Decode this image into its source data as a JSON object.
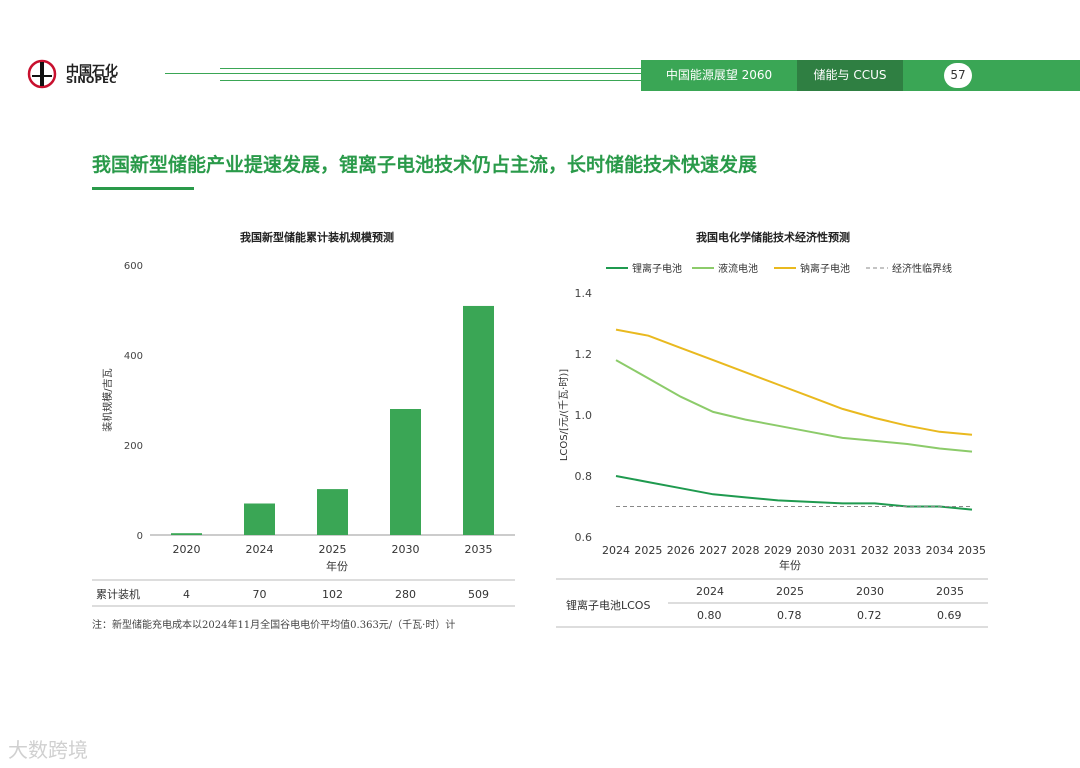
{
  "header": {
    "logo_cn": "中国石化",
    "logo_en": "SINOPEC",
    "report": "中国能源展望 2060",
    "section": "储能与 CCUS",
    "page": "57"
  },
  "title": "我国新型储能产业提速发展，锂离子电池技术仍占主流，长时储能技术快速发展",
  "left_chart": {
    "title": "我国新型储能累计装机规模预测",
    "ylabel": "装机规模/吉瓦",
    "xlabel": "年份",
    "row_label": "累计装机",
    "categories": [
      "2020",
      "2024",
      "2025",
      "2030",
      "2035"
    ],
    "values": [
      4,
      70,
      102,
      280,
      509
    ],
    "yticks": [
      "0",
      "200",
      "400",
      "600"
    ],
    "ylim": [
      0,
      600
    ]
  },
  "right_chart": {
    "title": "我国电化学储能技术经济性预测",
    "ylabel": "LCOS/[元/(千瓦·时)]",
    "xlabel": "年份",
    "yticks": [
      "0.6",
      "0.8",
      "1.0",
      "1.2",
      "1.4"
    ],
    "ylim": [
      0.6,
      1.4
    ],
    "x": [
      "2024",
      "2025",
      "2026",
      "2027",
      "2028",
      "2029",
      "2030",
      "2031",
      "2032",
      "2033",
      "2034",
      "2035"
    ],
    "legend": [
      "锂离子电池",
      "液流电池",
      "钠离子电池",
      "经济性临界线"
    ],
    "table": {
      "row_label": "锂离子电池LCOS",
      "years": [
        "2024",
        "2025",
        "2030",
        "2035"
      ],
      "values": [
        "0.80",
        "0.78",
        "0.72",
        "0.69"
      ]
    }
  },
  "chart_data": [
    {
      "type": "bar",
      "title": "我国新型储能累计装机规模预测",
      "xlabel": "年份",
      "ylabel": "装机规模/吉瓦",
      "categories": [
        "2020",
        "2024",
        "2025",
        "2030",
        "2035"
      ],
      "values": [
        4,
        70,
        102,
        280,
        509
      ],
      "ylim": [
        0,
        600
      ],
      "color": "#3aa655"
    },
    {
      "type": "line",
      "title": "我国电化学储能技术经济性预测",
      "xlabel": "年份",
      "ylabel": "LCOS/[元/(千瓦·时)]",
      "x": [
        2024,
        2025,
        2026,
        2027,
        2028,
        2029,
        2030,
        2031,
        2032,
        2033,
        2034,
        2035
      ],
      "ylim": [
        0.6,
        1.4
      ],
      "legend_position": "top",
      "series": [
        {
          "name": "锂离子电池",
          "color": "#1f9a4f",
          "values": [
            0.8,
            0.78,
            0.76,
            0.74,
            0.73,
            0.72,
            0.715,
            0.71,
            0.71,
            0.7,
            0.7,
            0.69
          ]
        },
        {
          "name": "液流电池",
          "color": "#8ccb6a",
          "values": [
            1.18,
            1.12,
            1.06,
            1.01,
            0.985,
            0.965,
            0.945,
            0.925,
            0.915,
            0.905,
            0.89,
            0.88
          ]
        },
        {
          "name": "钠离子电池",
          "color": "#e9b91f",
          "values": [
            1.28,
            1.26,
            1.22,
            1.18,
            1.14,
            1.1,
            1.06,
            1.02,
            0.99,
            0.965,
            0.945,
            0.935
          ]
        },
        {
          "name": "经济性临界线",
          "color": "#888888",
          "dashed": true,
          "values": [
            0.7,
            0.7,
            0.7,
            0.7,
            0.7,
            0.7,
            0.7,
            0.7,
            0.7,
            0.7,
            0.7,
            0.7
          ]
        }
      ]
    }
  ],
  "note": "注：新型储能充电成本以2024年11月全国谷电电价平均值0.363元/（千瓦·时）计",
  "watermark": "大数跨境"
}
